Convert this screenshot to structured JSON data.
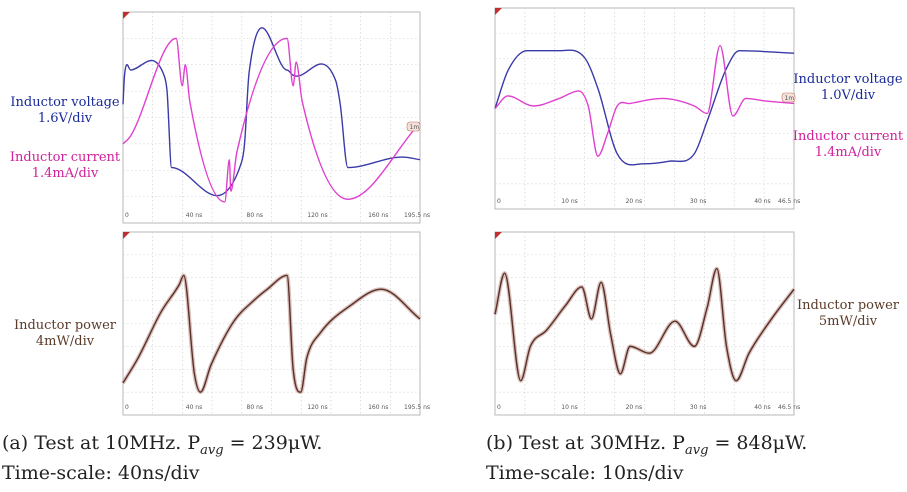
{
  "chart_data": [
    {
      "type": "line",
      "panel": "a-top",
      "x_ticks": [
        "0",
        "40 ns",
        "80 ns",
        "120 ns",
        "160 ns",
        "195.5 ns"
      ],
      "colors": {
        "voltage": "#3a3aa8",
        "current": "#e040d0"
      },
      "series": [
        {
          "name": "Inductor voltage",
          "label": "Inductor voltage",
          "scale": "1.6V/div",
          "x": [
            0,
            1,
            5,
            27,
            29,
            32,
            78,
            80,
            83,
            108,
            112,
            140,
            143,
            148,
            184,
            195.5
          ],
          "y": [
            0.5,
            1.6,
            1.8,
            1.6,
            1.0,
            -1.9,
            -1.7,
            -1.0,
            1.7,
            1.8,
            1.6,
            1.4,
            0.5,
            -1.9,
            -1.5,
            -1.6
          ]
        },
        {
          "name": "Inductor current",
          "label": "Inductor current",
          "scale": "1.4mA/div",
          "x": [
            0,
            5,
            35,
            39,
            41,
            44,
            67,
            70,
            71,
            75,
            108,
            112,
            114,
            118,
            148,
            195.5
          ],
          "y": [
            -1.0,
            -0.7,
            3.0,
            1.2,
            2.0,
            0.6,
            -3.2,
            -1.6,
            -2.8,
            -1.3,
            3.0,
            1.2,
            2.1,
            0.6,
            -3.1,
            -0.2
          ]
        }
      ]
    },
    {
      "type": "line",
      "panel": "a-bottom",
      "x_ticks": [
        "0",
        "40 ns",
        "80 ns",
        "120 ns",
        "160 ns",
        "195.5 ns"
      ],
      "colors": {
        "power": "#5a3028"
      },
      "series": [
        {
          "name": "Inductor power",
          "label": "Inductor power",
          "scale": "4mW/div",
          "x": [
            0,
            10,
            25,
            37,
            40,
            47,
            51,
            58,
            73,
            86,
            95,
            108,
            112,
            117,
            121,
            130,
            150,
            170,
            195.5
          ],
          "y": [
            -2.6,
            -1.5,
            0.5,
            1.7,
            2.1,
            -2.2,
            -3.0,
            -1.8,
            0.1,
            1.0,
            1.5,
            2.1,
            -2.0,
            -3.0,
            -1.5,
            -0.4,
            0.8,
            1.5,
            0.2
          ]
        }
      ]
    },
    {
      "type": "line",
      "panel": "b-top",
      "x_ticks": [
        "0",
        "10 ns",
        "20 ns",
        "30 ns",
        "40 ns",
        "46.5 ns"
      ],
      "colors": {
        "voltage": "#3a3aa8",
        "current": "#e040d0"
      },
      "series": [
        {
          "name": "Inductor voltage",
          "label": "Inductor voltage",
          "scale": "1.0V/div",
          "x": [
            0,
            2,
            5,
            10,
            14,
            16,
            19,
            23,
            27,
            31,
            33,
            36,
            38,
            46.5
          ],
          "y": [
            0,
            1.5,
            2.3,
            2.3,
            2.0,
            0.8,
            -1.8,
            -2.2,
            -2.1,
            -1.8,
            -0.5,
            1.6,
            2.3,
            2.2
          ]
        },
        {
          "name": "Inductor current",
          "label": "Inductor current",
          "scale": "1.4mA/div",
          "x": [
            0,
            2,
            6,
            10,
            13,
            14.5,
            16,
            17.5,
            19,
            21,
            26,
            31,
            33,
            35,
            37,
            39,
            42,
            46.5
          ],
          "y": [
            0,
            0.5,
            0.1,
            0.4,
            0.7,
            0.1,
            -1.9,
            -1.0,
            0.1,
            0.2,
            0.4,
            0.1,
            -0.2,
            2.5,
            -0.3,
            0.4,
            0.3,
            0.2
          ]
        }
      ]
    },
    {
      "type": "line",
      "panel": "b-bottom",
      "x_ticks": [
        "0",
        "10 ns",
        "20 ns",
        "30 ns",
        "40 ns",
        "46.5 ns"
      ],
      "colors": {
        "power": "#5a3028"
      },
      "series": [
        {
          "name": "Inductor power",
          "label": "Inductor power",
          "scale": "5mW/div",
          "x": [
            0,
            1.5,
            4,
            5.5,
            8,
            11,
            13.5,
            15,
            16.5,
            18,
            19.5,
            21,
            24,
            28,
            31,
            33,
            34.5,
            36,
            37.5,
            39.5,
            43,
            46.5
          ],
          "y": [
            0.4,
            2.2,
            -2.5,
            -1.0,
            -0.3,
            0.8,
            1.6,
            0.2,
            1.8,
            -0.5,
            -2.2,
            -1.0,
            -1.3,
            0.1,
            -1.0,
            0.7,
            2.4,
            -1.0,
            -2.5,
            -1.3,
            0.2,
            1.5
          ]
        }
      ]
    }
  ],
  "labels": {
    "a_voltage": "Inductor voltage",
    "a_voltage_scale": "1.6V/div",
    "a_current": "Inductor current",
    "a_current_scale": "1.4mA/div",
    "a_power": "Inductor power",
    "a_power_scale": "4mW/div",
    "b_voltage": "Inductor voltage",
    "b_voltage_scale": "1.0V/div",
    "b_current": "Inductor current",
    "b_current_scale": "1.4mA/div",
    "b_power": "Inductor power",
    "b_power_scale": "5mW/div"
  },
  "captions": {
    "a_line1": "(a) Test at 10MHz. P",
    "a_sub": "avg",
    "a_val": " = 239μW.",
    "a_line2": "Time-scale: 40ns/div",
    "b_line1": "(b) Test at 30MHz. P",
    "b_sub": "avg",
    "b_val": " = 848μW.",
    "b_line2": "Time-scale: 10ns/div"
  },
  "marker_text": "1m"
}
